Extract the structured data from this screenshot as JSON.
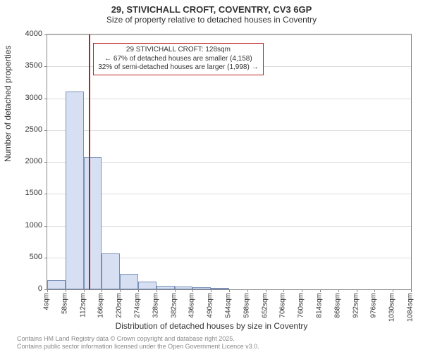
{
  "title": "29, STIVICHALL CROFT, COVENTRY, CV3 6GP",
  "subtitle": "Size of property relative to detached houses in Coventry",
  "ylabel": "Number of detached properties",
  "xlabel": "Distribution of detached houses by size in Coventry",
  "footer_line1": "Contains HM Land Registry data © Crown copyright and database right 2025.",
  "footer_line2": "Contains public sector information licensed under the Open Government Licence v3.0.",
  "annotation": {
    "line1": "29 STIVICHALL CROFT: 128sqm",
    "line2": "← 67% of detached houses are smaller (4,158)",
    "line3": "32% of semi-detached houses are larger (1,998) →"
  },
  "chart": {
    "type": "histogram",
    "ylim": [
      0,
      4000
    ],
    "ytick_step": 500,
    "yticks": [
      0,
      500,
      1000,
      1500,
      2000,
      2500,
      3000,
      3500,
      4000
    ],
    "xticks": [
      "4sqm",
      "58sqm",
      "112sqm",
      "166sqm",
      "220sqm",
      "274sqm",
      "328sqm",
      "382sqm",
      "436sqm",
      "490sqm",
      "544sqm",
      "598sqm",
      "652sqm",
      "706sqm",
      "760sqm",
      "814sqm",
      "868sqm",
      "922sqm",
      "976sqm",
      "1030sqm",
      "1084sqm"
    ],
    "x_min": 4,
    "x_max": 1084,
    "bar_edges_sqm": [
      4,
      58,
      112,
      166,
      220,
      274,
      328,
      382,
      436,
      490,
      544
    ],
    "values": [
      140,
      3100,
      2080,
      560,
      240,
      120,
      60,
      40,
      30,
      25
    ],
    "bar_fill": "#d6e0f2",
    "bar_border": "#7a8fb8",
    "grid_color": "#dddddd",
    "axis_color": "#888888",
    "background_color": "#ffffff",
    "marker_sqm": 128,
    "marker_color": "#c22020",
    "title_fontsize": 13,
    "subtitle_fontsize": 12,
    "label_fontsize": 12,
    "tick_fontsize": 10
  }
}
